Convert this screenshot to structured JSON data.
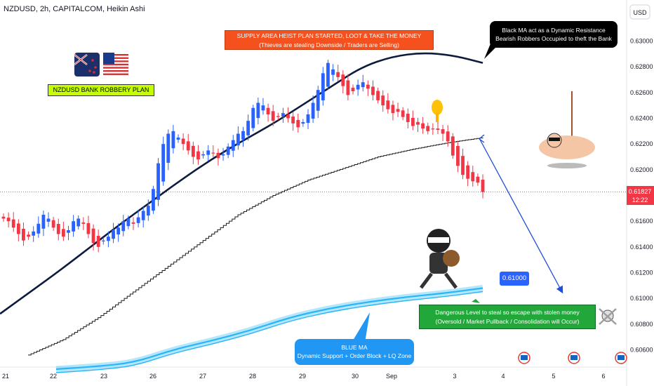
{
  "header": {
    "title": "NZDUSD, 2h, CAPITALCOM, Heikin Ashi",
    "currency": "USD"
  },
  "price_label": {
    "value": "0.61827",
    "countdown": "12:22"
  },
  "annotations": {
    "heist_line1": "SUPPLY AREA HEIST PLAN STARTED, LOOT & TAKE THE MONEY",
    "heist_line2": "(Thieves are stealing Downside / Traders are Selling)",
    "black_ma_line1": "Black MA act as a Dynamic Resistance",
    "black_ma_line2": "Bearish Robbers Occupied to theft the Bank",
    "plan_title": "NZDUSD BANK ROBBERY PLAN",
    "target_value": "0.61000",
    "danger_line1": "Dangerous Level to steal so escape with stolen money",
    "danger_line2": "(Oversold / Market Pullback / Consolidation will Occur)",
    "blue_ma_line1": "BLUE MA",
    "blue_ma_line2": "Dynamic Support + Order Block + LQ Zone"
  },
  "colors": {
    "up": "#2962ff",
    "down": "#f23645",
    "black_ma": "#0d1b3e",
    "blue_ma": "#29b6f6",
    "heist_box": "#f4511e",
    "plan_box": "#c6ff00",
    "danger_box": "#22a83a",
    "arrow": "#1e4fd8"
  },
  "chart_data": {
    "type": "candlestick",
    "style": "Heikin Ashi",
    "symbol": "NZDUSD",
    "interval": "2h",
    "y_ticks": [
      0.63,
      0.628,
      0.626,
      0.624,
      0.622,
      0.62,
      0.618,
      0.616,
      0.614,
      0.612,
      0.61,
      0.608,
      0.606
    ],
    "y_tick_labels": [
      "0.63000",
      "0.62800",
      "0.62600",
      "0.62400",
      "0.62200",
      "0.62000",
      "0.61800",
      "0.61600",
      "0.61400",
      "0.61200",
      "0.61000",
      "0.60800",
      "0.60600"
    ],
    "ylim": [
      0.6043,
      0.6325
    ],
    "x_ticks": [
      "21",
      "22",
      "23",
      "26",
      "27",
      "28",
      "29",
      "30",
      "Sep",
      "3",
      "4",
      "5",
      "6"
    ],
    "ylabel": "USD",
    "last_price": 0.61827,
    "candles_close": [
      0.6162,
      0.616,
      0.6155,
      0.615,
      0.6145,
      0.6148,
      0.6152,
      0.6158,
      0.6165,
      0.6162,
      0.6155,
      0.615,
      0.6148,
      0.6153,
      0.616,
      0.6162,
      0.6158,
      0.615,
      0.6143,
      0.614,
      0.6145,
      0.6148,
      0.6153,
      0.6155,
      0.616,
      0.6162,
      0.6158,
      0.6163,
      0.6168,
      0.6172,
      0.6185,
      0.6205,
      0.622,
      0.6228,
      0.623,
      0.6225,
      0.622,
      0.6215,
      0.621,
      0.6208,
      0.6212,
      0.6215,
      0.6213,
      0.6209,
      0.6212,
      0.6218,
      0.6223,
      0.6228,
      0.623,
      0.6238,
      0.6248,
      0.6252,
      0.625,
      0.6243,
      0.6238,
      0.6241,
      0.6244,
      0.624,
      0.6236,
      0.6233,
      0.6237,
      0.6243,
      0.6252,
      0.6262,
      0.6275,
      0.6283,
      0.6278,
      0.6272,
      0.6265,
      0.6258,
      0.6261,
      0.6266,
      0.6268,
      0.6263,
      0.6258,
      0.6254,
      0.625,
      0.6247,
      0.6244,
      0.6245,
      0.6241,
      0.6237,
      0.6234,
      0.6235,
      0.6232,
      0.623,
      0.6232,
      0.6231,
      0.6228,
      0.6222,
      0.6211,
      0.6203,
      0.6196,
      0.6193,
      0.6191,
      0.619,
      0.61827
    ],
    "series": [
      {
        "name": "Black MA",
        "values": [
          0.6088,
          0.6105,
          0.6122,
          0.614,
          0.6158,
          0.6175,
          0.6192,
          0.6208,
          0.6222,
          0.6235,
          0.625,
          0.6265,
          0.628,
          0.6288,
          0.6291,
          0.6289,
          0.6283
        ]
      },
      {
        "name": "Black stepped MA",
        "values": [
          0.6056,
          0.6068,
          0.6085,
          0.6105,
          0.6125,
          0.6145,
          0.6165,
          0.618,
          0.6192,
          0.6201,
          0.621,
          0.6216,
          0.6221,
          0.6225
        ]
      },
      {
        "name": "BLUE MA",
        "values": [
          0.6045,
          0.6047,
          0.605,
          0.606,
          0.6067,
          0.6075,
          0.6085,
          0.6092,
          0.6097,
          0.6101,
          0.6104,
          0.6108
        ]
      }
    ],
    "levels": [
      {
        "name": "Target",
        "value": 0.61
      },
      {
        "name": "Last price",
        "value": 0.61827
      }
    ]
  }
}
